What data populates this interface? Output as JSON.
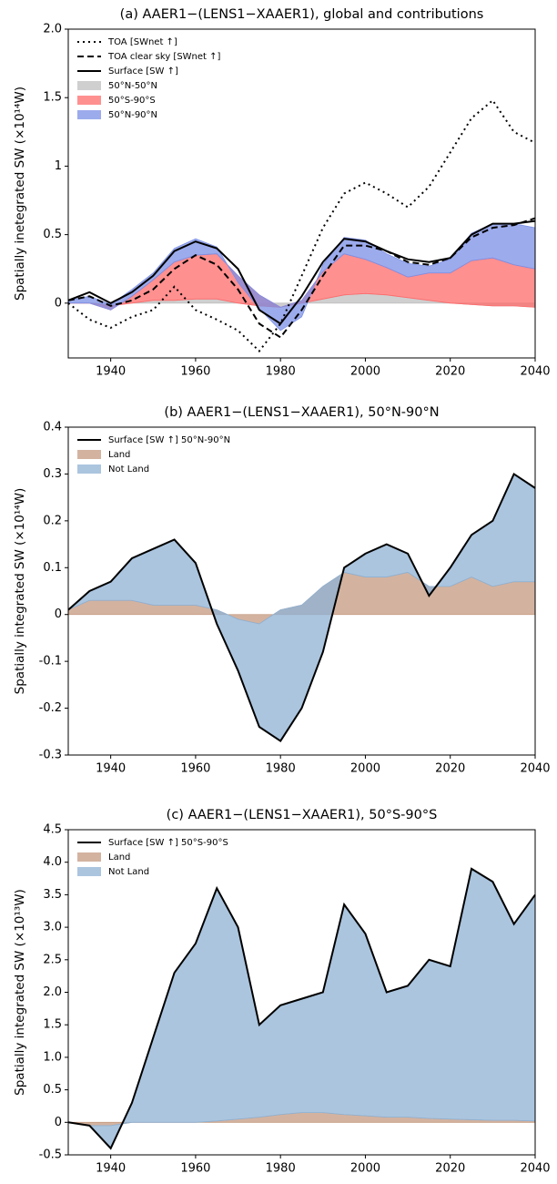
{
  "chart_data": [
    {
      "type": "line",
      "title": "(a) AAER1−(LENS1−XAAER1), global and contributions",
      "ylabel": "Spatially inetegrated  SW (×10¹⁴W)",
      "x": [
        1930,
        1935,
        1940,
        1945,
        1950,
        1955,
        1960,
        1965,
        1970,
        1975,
        1980,
        1985,
        1990,
        1995,
        2000,
        2005,
        2010,
        2015,
        2020,
        2025,
        2030,
        2035,
        2040
      ],
      "xlim": [
        1930,
        2040
      ],
      "xticks": [
        1940,
        1960,
        1980,
        2000,
        2020,
        2040
      ],
      "ylim": [
        -0.4,
        2.0
      ],
      "yticks": [
        0,
        0.5,
        1,
        1.5,
        {
          "value": 2,
          "label": "2.0"
        }
      ],
      "legend": "upper left",
      "series": [
        {
          "name": "TOA [SWnet ↑]",
          "mark": "line",
          "dash": "dotted",
          "color": "#000000",
          "values": [
            0.0,
            -0.12,
            -0.18,
            -0.1,
            -0.05,
            0.12,
            -0.05,
            -0.12,
            -0.2,
            -0.35,
            -0.15,
            0.2,
            0.55,
            0.8,
            0.88,
            0.8,
            0.7,
            0.85,
            1.1,
            1.35,
            1.48,
            1.25,
            1.17
          ]
        },
        {
          "name": "TOA clear sky [SWnet ↑]",
          "mark": "line",
          "dash": "dashed",
          "color": "#000000",
          "values": [
            0.02,
            0.05,
            -0.02,
            0.02,
            0.1,
            0.25,
            0.35,
            0.28,
            0.1,
            -0.15,
            -0.25,
            -0.05,
            0.2,
            0.42,
            0.42,
            0.38,
            0.3,
            0.28,
            0.33,
            0.48,
            0.55,
            0.57,
            0.62
          ]
        },
        {
          "name": "Surface [SW ↑]",
          "mark": "line",
          "dash": "solid",
          "color": "#000000",
          "values": [
            0.02,
            0.08,
            0.0,
            0.08,
            0.2,
            0.38,
            0.45,
            0.4,
            0.25,
            -0.05,
            -0.15,
            0.05,
            0.3,
            0.47,
            0.45,
            0.38,
            0.32,
            0.3,
            0.33,
            0.5,
            0.58,
            0.58,
            0.6
          ]
        },
        {
          "name": "50°N-50°N",
          "mark": "area",
          "color": "#bfbfbf",
          "values": [
            0,
            0,
            -0.02,
            0,
            0.02,
            0.02,
            0.03,
            0.03,
            0,
            -0.02,
            -0.03,
            0,
            0.03,
            0.06,
            0.07,
            0.06,
            0.04,
            0.02,
            0.0,
            -0.01,
            -0.02,
            -0.02,
            -0.03
          ]
        },
        {
          "name": "50°S-90°S",
          "mark": "area",
          "color": "#ff6b6b",
          "values": [
            0,
            0,
            -0.03,
            0.05,
            0.15,
            0.28,
            0.32,
            0.33,
            0.2,
            0.08,
            0.0,
            0.02,
            0.2,
            0.3,
            0.25,
            0.2,
            0.15,
            0.2,
            0.22,
            0.32,
            0.35,
            0.3,
            0.28
          ]
        },
        {
          "name": "50°N-90°N",
          "mark": "area",
          "color": "#7b8fe6",
          "values": [
            0.02,
            0.05,
            0.04,
            0.05,
            0.05,
            0.1,
            0.12,
            0.05,
            -0.05,
            -0.1,
            -0.17,
            -0.12,
            0.05,
            0.12,
            0.14,
            0.1,
            0.1,
            0.05,
            0.1,
            0.2,
            0.25,
            0.3,
            0.3
          ]
        }
      ]
    },
    {
      "type": "line",
      "title": "(b) AAER1−(LENS1−XAAER1), 50°N-90°N",
      "ylabel": "Spatially integrated SW (×10¹⁴W)",
      "x": [
        1930,
        1935,
        1940,
        1945,
        1950,
        1955,
        1960,
        1965,
        1970,
        1975,
        1980,
        1985,
        1990,
        1995,
        2000,
        2005,
        2010,
        2015,
        2020,
        2025,
        2030,
        2035,
        2040
      ],
      "xlim": [
        1930,
        2040
      ],
      "xticks": [
        1940,
        1960,
        1980,
        2000,
        2020,
        2040
      ],
      "ylim": [
        -0.3,
        0.4
      ],
      "yticks": [
        -0.3,
        -0.2,
        -0.1,
        0,
        0.1,
        0.2,
        0.3,
        0.4
      ],
      "legend": "upper left",
      "series": [
        {
          "name": "Surface [SW ↑] 50°N-90°N",
          "mark": "line",
          "dash": "solid",
          "color": "#000000",
          "values": [
            0.01,
            0.05,
            0.07,
            0.12,
            0.14,
            0.16,
            0.11,
            -0.02,
            -0.12,
            -0.24,
            -0.27,
            -0.2,
            -0.08,
            0.1,
            0.13,
            0.15,
            0.13,
            0.04,
            0.1,
            0.17,
            0.2,
            0.3,
            0.27
          ]
        },
        {
          "name": "Land",
          "mark": "area",
          "color": "#c49a80",
          "values": [
            0.01,
            0.03,
            0.03,
            0.03,
            0.02,
            0.02,
            0.02,
            0.01,
            -0.01,
            -0.02,
            0.01,
            0.02,
            0.06,
            0.09,
            0.08,
            0.08,
            0.09,
            0.06,
            0.06,
            0.08,
            0.06,
            0.07,
            0.07
          ]
        },
        {
          "name": "Not Land",
          "mark": "area",
          "color": "#8fb2d4",
          "values": [
            0,
            0.02,
            0.04,
            0.09,
            0.12,
            0.14,
            0.09,
            -0.03,
            -0.11,
            -0.22,
            -0.28,
            -0.22,
            -0.14,
            0.01,
            0.05,
            0.07,
            0.04,
            -0.02,
            0.04,
            0.09,
            0.14,
            0.23,
            0.2
          ]
        }
      ]
    },
    {
      "type": "line",
      "title": "(c) AAER1−(LENS1−XAAER1), 50°S-90°S",
      "ylabel": "Spatially integrated SW (×10¹³W)",
      "x": [
        1930,
        1935,
        1940,
        1945,
        1950,
        1955,
        1960,
        1965,
        1970,
        1975,
        1980,
        1985,
        1990,
        1995,
        2000,
        2005,
        2010,
        2015,
        2020,
        2025,
        2030,
        2035,
        2040
      ],
      "xlim": [
        1930,
        2040
      ],
      "xticks": [
        1940,
        1960,
        1980,
        2000,
        2020,
        2040
      ],
      "ylim": [
        -0.5,
        4.5
      ],
      "yticks": [
        -0.5,
        0,
        0.5,
        {
          "value": 1,
          "label": "1.0"
        },
        1.5,
        {
          "value": 2,
          "label": "2.0"
        },
        2.5,
        {
          "value": 3,
          "label": "3.0"
        },
        3.5,
        {
          "value": 4,
          "label": "4.0"
        },
        4.5
      ],
      "legend": "upper left",
      "series": [
        {
          "name": "Surface [SW ↑] 50°S-90°S",
          "mark": "line",
          "dash": "solid",
          "color": "#000000",
          "values": [
            0,
            -0.05,
            -0.4,
            0.3,
            1.3,
            2.3,
            2.75,
            3.6,
            3.0,
            1.5,
            1.8,
            1.9,
            2.0,
            3.35,
            2.9,
            2.0,
            2.1,
            2.5,
            2.4,
            3.9,
            3.7,
            3.05,
            3.5
          ]
        },
        {
          "name": "Land",
          "mark": "area",
          "color": "#c49a80",
          "values": [
            0,
            -0.05,
            -0.05,
            0,
            0,
            0,
            0,
            0.02,
            0.05,
            0.08,
            0.12,
            0.15,
            0.15,
            0.12,
            0.1,
            0.08,
            0.08,
            0.06,
            0.05,
            0.04,
            0.03,
            0.03,
            0.02
          ]
        },
        {
          "name": "Not Land",
          "mark": "area",
          "color": "#8fb2d4",
          "values": [
            0,
            0,
            -0.35,
            0.3,
            1.3,
            2.3,
            2.75,
            3.58,
            2.95,
            1.42,
            1.68,
            1.75,
            1.85,
            3.23,
            2.8,
            1.92,
            2.02,
            2.44,
            2.35,
            3.86,
            3.67,
            3.02,
            3.48
          ]
        }
      ]
    }
  ]
}
